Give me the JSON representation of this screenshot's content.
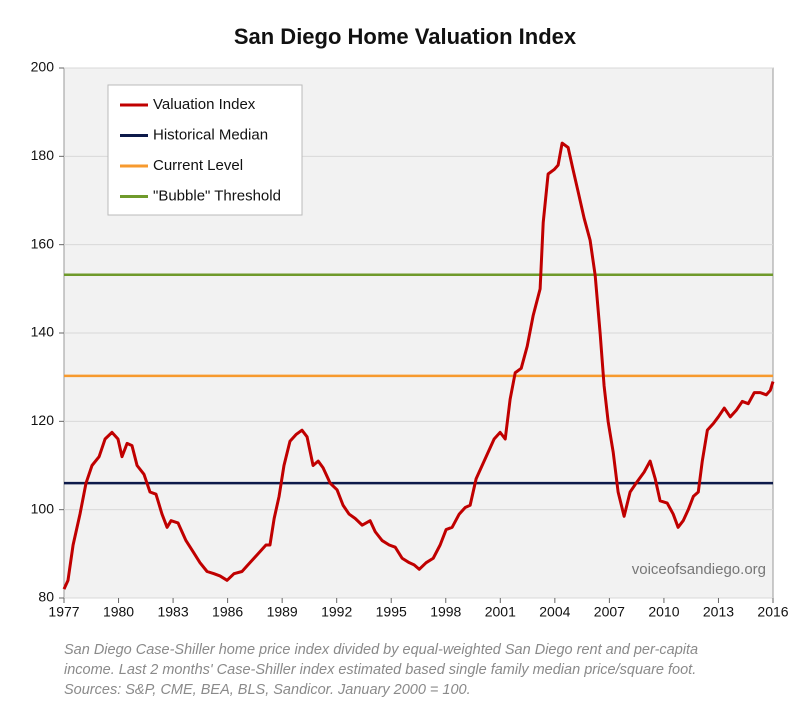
{
  "chart_data": {
    "type": "line",
    "title": "San Diego Home Valuation Index",
    "watermark": "voiceofsandiego.org",
    "caption": [
      "San Diego Case-Shiller home price index divided by equal-weighted San Diego rent and per-capita",
      "income. Last 2 months' Case-Shiller index estimated based single family median price/square foot.",
      "Sources: S&P, CME, BEA, BLS, Sandicor. January 2000 = 100."
    ],
    "xlim": [
      1977,
      2016
    ],
    "xticks": [
      1977,
      1980,
      1983,
      1986,
      1989,
      1992,
      1995,
      1998,
      2001,
      2004,
      2007,
      2010,
      2013,
      2016
    ],
    "ylim": [
      80,
      200
    ],
    "yticks": [
      80,
      100,
      120,
      140,
      160,
      180,
      200
    ],
    "grid": true,
    "legend": "upper left",
    "series": [
      {
        "name": "Valuation Index",
        "color": "#c00000",
        "x": [
          1977.0,
          1977.22,
          1977.5,
          1977.88,
          1978.21,
          1978.54,
          1978.93,
          1979.26,
          1979.64,
          1979.97,
          1980.19,
          1980.47,
          1980.74,
          1981.02,
          1981.4,
          1981.73,
          1982.06,
          1982.39,
          1982.67,
          1982.89,
          1983.27,
          1983.71,
          1984.1,
          1984.48,
          1984.87,
          1985.25,
          1985.58,
          1985.97,
          1986.35,
          1986.79,
          1987.23,
          1987.67,
          1988.11,
          1988.33,
          1988.56,
          1988.83,
          1989.1,
          1989.43,
          1989.76,
          1990.09,
          1990.37,
          1990.7,
          1990.98,
          1991.25,
          1991.64,
          1992.02,
          1992.35,
          1992.68,
          1993.02,
          1993.4,
          1993.84,
          1994.12,
          1994.5,
          1994.89,
          1995.22,
          1995.6,
          1995.99,
          1996.26,
          1996.54,
          1996.92,
          1997.31,
          1997.69,
          1998.02,
          1998.35,
          1998.74,
          1999.07,
          1999.34,
          1999.67,
          2000.0,
          2000.33,
          2000.66,
          2000.99,
          2001.27,
          2001.54,
          2001.82,
          2002.15,
          2002.48,
          2002.81,
          2003.19,
          2003.36,
          2003.63,
          2003.96,
          2004.18,
          2004.4,
          2004.73,
          2005.0,
          2005.28,
          2005.61,
          2005.94,
          2006.22,
          2006.49,
          2006.71,
          2006.93,
          2007.21,
          2007.48,
          2007.81,
          2008.14,
          2008.47,
          2008.91,
          2009.24,
          2009.52,
          2009.79,
          2010.18,
          2010.51,
          2010.78,
          2011.06,
          2011.34,
          2011.62,
          2011.89,
          2012.11,
          2012.39,
          2012.72,
          2012.99,
          2013.32,
          2013.65,
          2013.98,
          2014.31,
          2014.64,
          2014.97,
          2015.3,
          2015.63,
          2015.85,
          2016.0
        ],
        "values": [
          82,
          84,
          92,
          99,
          106,
          110,
          112,
          116,
          117.5,
          116,
          112,
          115,
          114.5,
          110,
          108,
          104,
          103.5,
          99,
          96,
          97.5,
          97,
          93,
          90.5,
          88,
          86,
          85.5,
          85,
          84,
          85.5,
          86,
          88,
          90,
          92,
          92,
          98,
          103,
          110,
          115.5,
          117,
          118,
          116.5,
          110,
          111,
          109.5,
          106,
          104.5,
          101,
          99,
          98,
          96.5,
          97.5,
          95,
          93,
          92,
          91.5,
          89,
          88,
          87.5,
          86.5,
          88,
          89,
          92,
          95.5,
          96,
          99,
          100.5,
          101,
          107,
          110,
          113,
          116,
          117.5,
          116,
          125,
          131,
          132,
          137,
          144,
          150,
          165,
          176,
          177,
          178,
          183,
          182,
          177,
          172,
          166,
          161,
          153,
          140,
          128,
          120,
          113,
          104,
          98.5,
          104,
          106,
          108.5,
          111,
          107,
          102,
          101.5,
          99,
          96,
          97.5,
          100,
          103,
          104,
          111,
          118,
          119.5,
          121,
          123,
          121,
          122.5,
          124.5,
          124,
          126.5,
          126.5,
          126,
          127,
          129
        ]
      },
      {
        "name": "Historical Median",
        "color": "#0d1a4a",
        "x": [
          1977,
          2016
        ],
        "values": [
          106,
          106
        ]
      },
      {
        "name": "Current Level",
        "color": "#f79a2e",
        "x": [
          1977,
          2016
        ],
        "values": [
          130.3,
          130.3
        ]
      },
      {
        "name": "\"Bubble\" Threshold",
        "color": "#6f9a2b",
        "x": [
          1977,
          2016
        ],
        "values": [
          153.2,
          153.2
        ]
      }
    ]
  }
}
